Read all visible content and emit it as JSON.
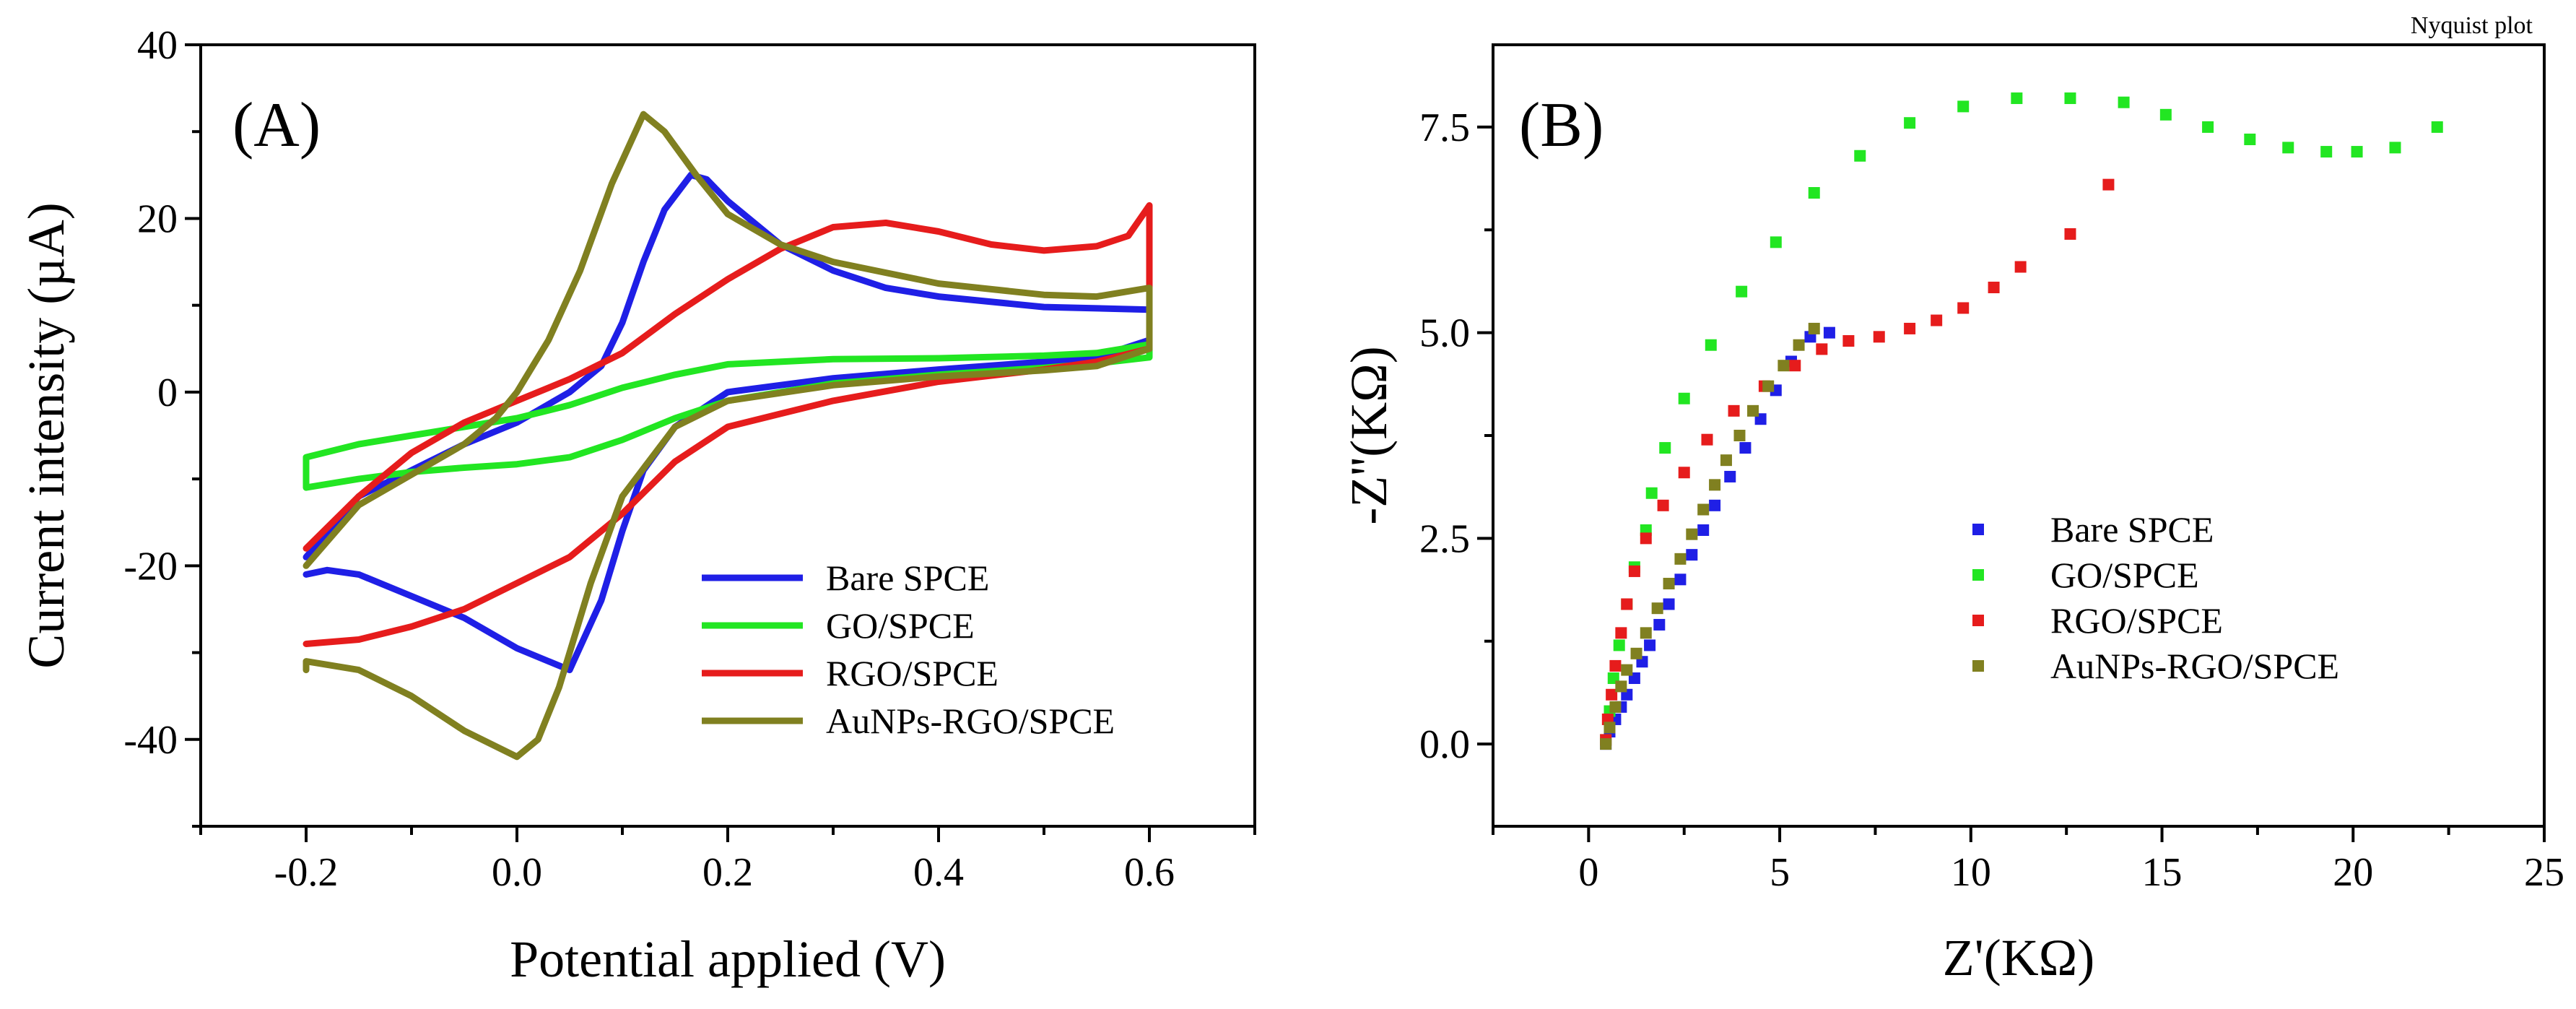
{
  "chart_data": [
    {
      "type": "line",
      "panel_label": "(A)",
      "xlabel": "Potential applied (V)",
      "ylabel": "Current intensity (µA)",
      "xlim": [
        -0.3,
        0.7
      ],
      "ylim": [
        -50,
        40
      ],
      "xticks": [
        -0.2,
        0.0,
        0.2,
        0.4,
        0.6
      ],
      "xtick_labels": [
        "-0.2",
        "0.0",
        "0.2",
        "0.4",
        "0.6"
      ],
      "yticks": [
        -40,
        -20,
        0,
        20,
        40
      ],
      "ytick_labels": [
        "-40",
        "-20",
        "0",
        "20",
        "40"
      ],
      "legend_position": "bottom-right",
      "series": [
        {
          "name": "Bare SPCE",
          "color": "#1f1fe6",
          "points": [
            [
              -0.2,
              -19
            ],
            [
              -0.15,
              -12
            ],
            [
              -0.1,
              -9
            ],
            [
              -0.05,
              -6
            ],
            [
              0.0,
              -3.5
            ],
            [
              0.05,
              0
            ],
            [
              0.08,
              3
            ],
            [
              0.1,
              8
            ],
            [
              0.12,
              15
            ],
            [
              0.14,
              21
            ],
            [
              0.165,
              25
            ],
            [
              0.18,
              24.5
            ],
            [
              0.2,
              22
            ],
            [
              0.25,
              17
            ],
            [
              0.3,
              14
            ],
            [
              0.35,
              12
            ],
            [
              0.4,
              11
            ],
            [
              0.5,
              9.8
            ],
            [
              0.6,
              9.5
            ],
            [
              0.6,
              6
            ],
            [
              0.55,
              4
            ],
            [
              0.5,
              3.5
            ],
            [
              0.4,
              2.6
            ],
            [
              0.3,
              1.6
            ],
            [
              0.2,
              0
            ],
            [
              0.15,
              -4
            ],
            [
              0.12,
              -9
            ],
            [
              0.1,
              -16
            ],
            [
              0.08,
              -24
            ],
            [
              0.05,
              -32
            ],
            [
              0.03,
              -31
            ],
            [
              0.0,
              -29.5
            ],
            [
              -0.05,
              -26
            ],
            [
              -0.1,
              -23.5
            ],
            [
              -0.15,
              -21
            ],
            [
              -0.18,
              -20.5
            ],
            [
              -0.2,
              -21
            ]
          ]
        },
        {
          "name": "GO/SPCE",
          "color": "#22e622",
          "points": [
            [
              -0.2,
              -7.5
            ],
            [
              -0.15,
              -6
            ],
            [
              -0.1,
              -5
            ],
            [
              -0.05,
              -4
            ],
            [
              0.0,
              -3
            ],
            [
              0.05,
              -1.5
            ],
            [
              0.1,
              0.5
            ],
            [
              0.15,
              2
            ],
            [
              0.2,
              3.2
            ],
            [
              0.3,
              3.8
            ],
            [
              0.4,
              3.9
            ],
            [
              0.5,
              4.2
            ],
            [
              0.55,
              4.5
            ],
            [
              0.6,
              5.5
            ],
            [
              0.6,
              4
            ],
            [
              0.55,
              3.3
            ],
            [
              0.5,
              2.8
            ],
            [
              0.4,
              2
            ],
            [
              0.3,
              1
            ],
            [
              0.2,
              -1
            ],
            [
              0.15,
              -3
            ],
            [
              0.1,
              -5.5
            ],
            [
              0.05,
              -7.5
            ],
            [
              0.0,
              -8.3
            ],
            [
              -0.05,
              -8.7
            ],
            [
              -0.1,
              -9.2
            ],
            [
              -0.15,
              -10
            ],
            [
              -0.2,
              -11
            ],
            [
              -0.2,
              -7.5
            ]
          ]
        },
        {
          "name": "RGO/SPCE",
          "color": "#e61c1c",
          "points": [
            [
              -0.2,
              -18
            ],
            [
              -0.15,
              -12
            ],
            [
              -0.1,
              -7
            ],
            [
              -0.05,
              -3.5
            ],
            [
              0.0,
              -1
            ],
            [
              0.05,
              1.5
            ],
            [
              0.1,
              4.5
            ],
            [
              0.15,
              9
            ],
            [
              0.2,
              13
            ],
            [
              0.25,
              16.5
            ],
            [
              0.3,
              19
            ],
            [
              0.35,
              19.5
            ],
            [
              0.4,
              18.5
            ],
            [
              0.45,
              17
            ],
            [
              0.5,
              16.3
            ],
            [
              0.55,
              16.8
            ],
            [
              0.58,
              18
            ],
            [
              0.6,
              21.5
            ],
            [
              0.6,
              5
            ],
            [
              0.55,
              3.5
            ],
            [
              0.5,
              2.6
            ],
            [
              0.4,
              1.2
            ],
            [
              0.3,
              -1
            ],
            [
              0.25,
              -2.5
            ],
            [
              0.2,
              -4
            ],
            [
              0.15,
              -8
            ],
            [
              0.1,
              -14
            ],
            [
              0.05,
              -19
            ],
            [
              0.0,
              -22
            ],
            [
              -0.05,
              -25
            ],
            [
              -0.1,
              -27
            ],
            [
              -0.15,
              -28.5
            ],
            [
              -0.2,
              -29
            ]
          ]
        },
        {
          "name": "AuNPs-RGO/SPCE",
          "color": "#808020",
          "points": [
            [
              -0.2,
              -20
            ],
            [
              -0.15,
              -13
            ],
            [
              -0.1,
              -9.5
            ],
            [
              -0.05,
              -6
            ],
            [
              -0.02,
              -3
            ],
            [
              0.0,
              0
            ],
            [
              0.03,
              6
            ],
            [
              0.06,
              14
            ],
            [
              0.09,
              24
            ],
            [
              0.12,
              32
            ],
            [
              0.14,
              30
            ],
            [
              0.17,
              25
            ],
            [
              0.2,
              20.5
            ],
            [
              0.25,
              17
            ],
            [
              0.3,
              15
            ],
            [
              0.4,
              12.5
            ],
            [
              0.5,
              11.2
            ],
            [
              0.55,
              11
            ],
            [
              0.6,
              12
            ],
            [
              0.6,
              5
            ],
            [
              0.55,
              3
            ],
            [
              0.5,
              2.5
            ],
            [
              0.4,
              1.8
            ],
            [
              0.3,
              0.8
            ],
            [
              0.2,
              -1
            ],
            [
              0.15,
              -4
            ],
            [
              0.1,
              -12
            ],
            [
              0.07,
              -22
            ],
            [
              0.04,
              -34
            ],
            [
              0.02,
              -40
            ],
            [
              0.0,
              -42
            ],
            [
              -0.05,
              -39
            ],
            [
              -0.1,
              -35
            ],
            [
              -0.15,
              -32
            ],
            [
              -0.2,
              -31
            ],
            [
              -0.2,
              -32
            ]
          ]
        }
      ]
    },
    {
      "type": "scatter",
      "panel_label": "(B)",
      "title": "Nyquist plot",
      "xlabel": "Z'(KΩ)",
      "ylabel": "-Z''(KΩ)",
      "xlim": [
        -2.5,
        25
      ],
      "ylim": [
        -1,
        8.5
      ],
      "xticks": [
        0,
        5,
        10,
        15,
        20,
        25
      ],
      "xtick_labels": [
        "0",
        "5",
        "10",
        "15",
        "20",
        "25"
      ],
      "yticks": [
        0.0,
        2.5,
        5.0,
        7.5
      ],
      "ytick_labels": [
        "0.0",
        "2.5",
        "5.0",
        "7.5"
      ],
      "legend_position": "bottom-right",
      "series": [
        {
          "name": "Bare SPCE",
          "color": "#1f1fe6",
          "points": [
            [
              0.45,
              0.0
            ],
            [
              0.55,
              0.15
            ],
            [
              0.7,
              0.3
            ],
            [
              0.85,
              0.45
            ],
            [
              1.0,
              0.6
            ],
            [
              1.2,
              0.8
            ],
            [
              1.4,
              1.0
            ],
            [
              1.6,
              1.2
            ],
            [
              1.85,
              1.45
            ],
            [
              2.1,
              1.7
            ],
            [
              2.4,
              2.0
            ],
            [
              2.7,
              2.3
            ],
            [
              3.0,
              2.6
            ],
            [
              3.3,
              2.9
            ],
            [
              3.7,
              3.25
            ],
            [
              4.1,
              3.6
            ],
            [
              4.5,
              3.95
            ],
            [
              4.9,
              4.3
            ],
            [
              5.3,
              4.65
            ],
            [
              5.8,
              4.95
            ],
            [
              6.3,
              5.0
            ]
          ]
        },
        {
          "name": "GO/SPCE",
          "color": "#22e622",
          "points": [
            [
              0.45,
              0.05
            ],
            [
              0.55,
              0.4
            ],
            [
              0.65,
              0.8
            ],
            [
              0.8,
              1.2
            ],
            [
              1.0,
              1.7
            ],
            [
              1.2,
              2.15
            ],
            [
              1.5,
              2.6
            ],
            [
              1.65,
              3.05
            ],
            [
              2.0,
              3.6
            ],
            [
              2.5,
              4.2
            ],
            [
              3.2,
              4.85
            ],
            [
              4.0,
              5.5
            ],
            [
              4.9,
              6.1
            ],
            [
              5.9,
              6.7
            ],
            [
              7.1,
              7.15
            ],
            [
              8.4,
              7.55
            ],
            [
              9.8,
              7.75
            ],
            [
              11.2,
              7.85
            ],
            [
              12.6,
              7.85
            ],
            [
              14.0,
              7.8
            ],
            [
              15.1,
              7.65
            ],
            [
              16.2,
              7.5
            ],
            [
              17.3,
              7.35
            ],
            [
              18.3,
              7.25
            ],
            [
              19.3,
              7.2
            ],
            [
              20.1,
              7.2
            ],
            [
              21.1,
              7.25
            ],
            [
              22.2,
              7.5
            ]
          ]
        },
        {
          "name": "RGO/SPCE",
          "color": "#e61c1c",
          "points": [
            [
              0.45,
              0.05
            ],
            [
              0.5,
              0.3
            ],
            [
              0.6,
              0.6
            ],
            [
              0.7,
              0.95
            ],
            [
              0.85,
              1.35
            ],
            [
              1.0,
              1.7
            ],
            [
              1.2,
              2.1
            ],
            [
              1.5,
              2.5
            ],
            [
              1.95,
              2.9
            ],
            [
              2.5,
              3.3
            ],
            [
              3.1,
              3.7
            ],
            [
              3.8,
              4.05
            ],
            [
              4.6,
              4.35
            ],
            [
              5.4,
              4.6
            ],
            [
              6.1,
              4.8
            ],
            [
              6.8,
              4.9
            ],
            [
              7.6,
              4.95
            ],
            [
              8.4,
              5.05
            ],
            [
              9.1,
              5.15
            ],
            [
              9.8,
              5.3
            ],
            [
              10.6,
              5.55
            ],
            [
              11.3,
              5.8
            ],
            [
              12.6,
              6.2
            ],
            [
              13.6,
              6.8
            ]
          ]
        },
        {
          "name": "AuNPs-RGO/SPCE",
          "color": "#808020",
          "points": [
            [
              0.45,
              0.0
            ],
            [
              0.55,
              0.2
            ],
            [
              0.7,
              0.45
            ],
            [
              0.85,
              0.7
            ],
            [
              1.0,
              0.9
            ],
            [
              1.25,
              1.1
            ],
            [
              1.5,
              1.35
            ],
            [
              1.8,
              1.65
            ],
            [
              2.1,
              1.95
            ],
            [
              2.4,
              2.25
            ],
            [
              2.7,
              2.55
            ],
            [
              3.0,
              2.85
            ],
            [
              3.3,
              3.15
            ],
            [
              3.6,
              3.45
            ],
            [
              3.95,
              3.75
            ],
            [
              4.3,
              4.05
            ],
            [
              4.7,
              4.35
            ],
            [
              5.1,
              4.6
            ],
            [
              5.5,
              4.85
            ],
            [
              5.9,
              5.05
            ]
          ]
        }
      ]
    }
  ]
}
